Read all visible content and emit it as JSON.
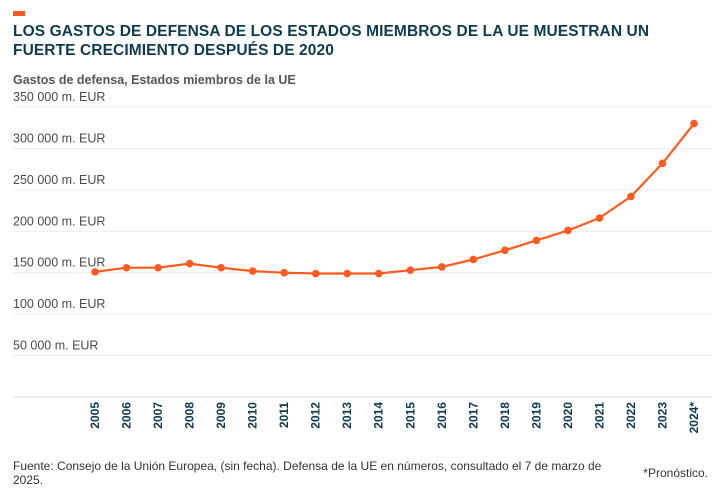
{
  "header": {
    "title": "LOS GASTOS DE DEFENSA DE LOS ESTADOS MIEMBROS DE LA UE MUESTRAN UN FUERTE CRECIMIENTO DESPUÉS DE 2020",
    "subtitle": "Gastos de defensa, Estados miembros de la UE"
  },
  "footer": {
    "source": "Fuente: Consejo de la Unión Europea, (sin fecha). Defensa de la UE en números, consultado el 7 de marzo de 2025.",
    "note": "*Pronóstico."
  },
  "colors": {
    "accent": "#ff5a1f",
    "line": "#ff5a1f",
    "title": "#0d3b4f"
  },
  "chart_data": {
    "type": "line",
    "title": "",
    "xlabel": "",
    "ylabel": "",
    "grid": true,
    "ylim": [
      0,
      350000
    ],
    "yticks": [
      50000,
      100000,
      150000,
      200000,
      250000,
      300000,
      350000
    ],
    "ytick_labels": [
      "50 000 m. EUR",
      "100 000 m. EUR",
      "150 000 m. EUR",
      "200 000 m. EUR",
      "250 000 m. EUR",
      "300 000 m. EUR",
      "350 000 m. EUR"
    ],
    "categories": [
      "2005",
      "2006",
      "2007",
      "2008",
      "2009",
      "2010",
      "2011",
      "2012",
      "2013",
      "2014",
      "2015",
      "2016",
      "2017",
      "2018",
      "2019",
      "2020",
      "2021",
      "2022",
      "2023",
      "2024*"
    ],
    "series": [
      {
        "values": [
          151000,
          156000,
          156000,
          161000,
          156000,
          152000,
          150000,
          149000,
          149000,
          149000,
          153000,
          157000,
          166000,
          177000,
          189000,
          201000,
          216000,
          242000,
          282000,
          330000
        ]
      }
    ]
  }
}
